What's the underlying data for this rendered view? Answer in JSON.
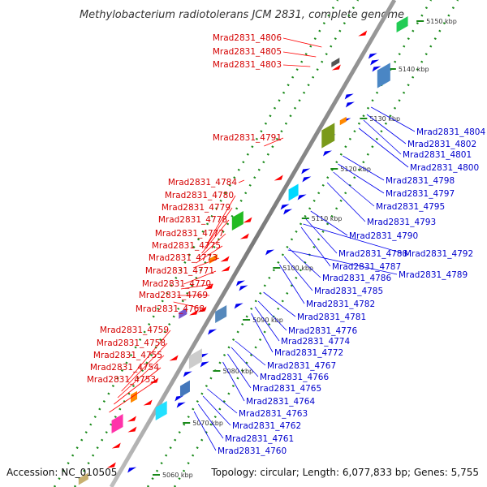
{
  "title": "Methylobacterium radiotolerans JCM 2831, complete genome",
  "footer": {
    "accession": "Accession: NC_010505",
    "summary": "Topology: circular; Length: 6,077,833 bp; Genes: 5,755"
  },
  "ticks": [
    "5060 kbp",
    "5070 kbp",
    "5080 kbp",
    "5090 kbp",
    "5100 kbp",
    "5110 kbp",
    "5120 kbp",
    "5130 kbp",
    "5140 kbp",
    "5150 kbp"
  ],
  "colors": {
    "forward": "#ff0000",
    "reverse": "#0000ee",
    "backbone": "#888888",
    "tick": "#1a8a1a"
  },
  "forward_labels": [
    "Mrad2831_4806",
    "Mrad2831_4805",
    "Mrad2831_4803",
    "Mrad2831_4791",
    "Mrad2831_4784",
    "Mrad2831_4780",
    "Mrad2831_4779",
    "Mrad2831_4778",
    "Mrad2831_4777",
    "Mrad2831_4775",
    "Mrad2831_4773",
    "Mrad2831_4771",
    "Mrad2831_4770",
    "Mrad2831_4769",
    "Mrad2831_4768",
    "Mrad2831_4759",
    "Mrad2831_4758",
    "Mrad2831_4755",
    "Mrad2831_4754",
    "Mrad2831_4753"
  ],
  "reverse_labels": [
    "Mrad2831_4804",
    "Mrad2831_4802",
    "Mrad2831_4801",
    "Mrad2831_4800",
    "Mrad2831_4798",
    "Mrad2831_4797",
    "Mrad2831_4795",
    "Mrad2831_4793",
    "Mrad2831_4790",
    "Mrad2831_4792",
    "Mrad2831_4788",
    "Mrad2831_4787",
    "Mrad2831_4789",
    "Mrad2831_4786",
    "Mrad2831_4785",
    "Mrad2831_4782",
    "Mrad2831_4781",
    "Mrad2831_4776",
    "Mrad2831_4774",
    "Mrad2831_4772",
    "Mrad2831_4767",
    "Mrad2831_4766",
    "Mrad2831_4765",
    "Mrad2831_4764",
    "Mrad2831_4763",
    "Mrad2831_4762",
    "Mrad2831_4761",
    "Mrad2831_4760"
  ]
}
